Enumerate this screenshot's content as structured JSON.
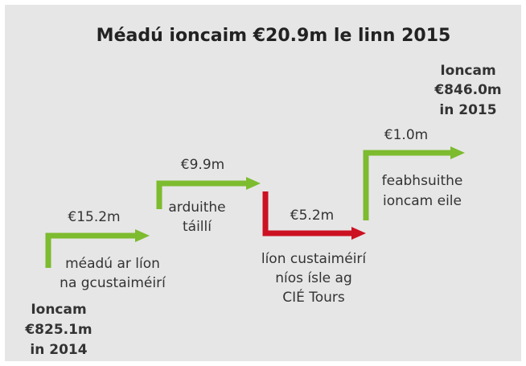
{
  "title": "Méadú ioncaim €20.9m le linn 2015",
  "start": {
    "lines": [
      "Ioncam",
      "€825.1m",
      "in 2014"
    ]
  },
  "end": {
    "lines": [
      "Ioncam",
      "€846.0m",
      "in 2015"
    ]
  },
  "steps": [
    {
      "amount": "€15.2m",
      "description": [
        "méadú ar líon",
        "na gcustaiméirí"
      ],
      "color": "#7dbb2f"
    },
    {
      "amount": "€9.9m",
      "description": [
        "arduithe",
        "táillí"
      ],
      "color": "#7dbb2f"
    },
    {
      "amount": "€5.2m",
      "description": [
        "líon custaiméirí",
        "níos ísle ag",
        "CIÉ Tours"
      ],
      "color": "#cc1122"
    },
    {
      "amount": "€1.0m",
      "description": [
        "feabhsuithe",
        "ioncam eile"
      ],
      "color": "#7dbb2f"
    }
  ]
}
